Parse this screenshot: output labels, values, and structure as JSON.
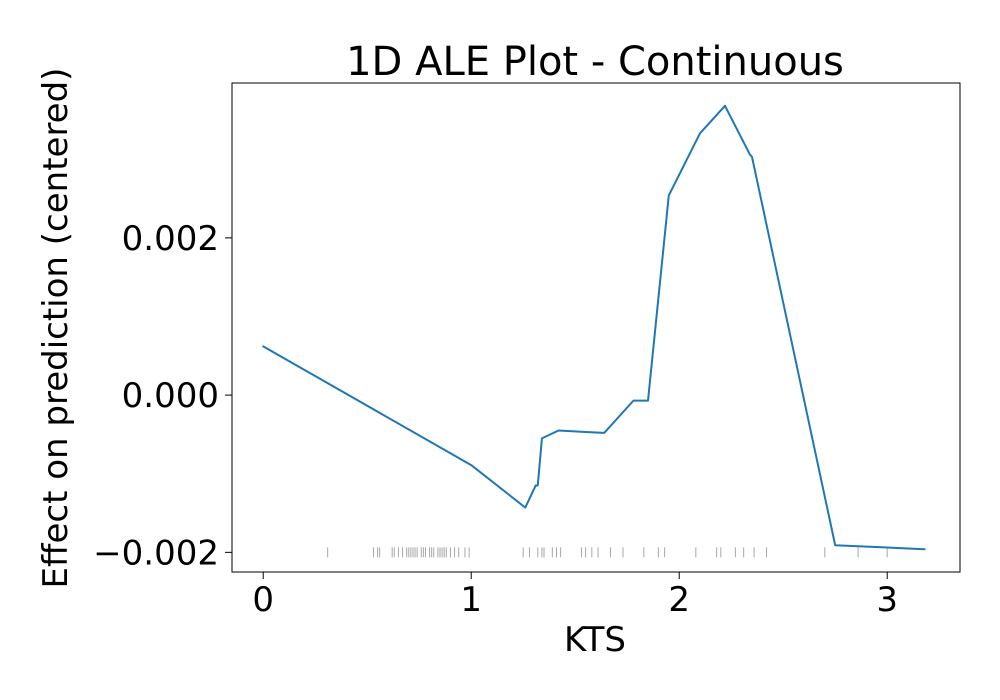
{
  "chart_data": {
    "type": "line",
    "title": "1D ALE Plot - Continuous",
    "xlabel": "KTS",
    "ylabel": "Effect on prediction (centered)",
    "xlim": [
      -0.15,
      3.35
    ],
    "ylim": [
      -0.00225,
      0.00397
    ],
    "x_ticks": [
      0,
      1,
      2,
      3
    ],
    "x_tick_labels": [
      "0",
      "1",
      "2",
      "3"
    ],
    "y_ticks": [
      -0.002,
      0.0,
      0.002
    ],
    "y_tick_labels": [
      "−0.002",
      "0.000",
      "0.002"
    ],
    "grid": false,
    "legend": "none",
    "series": [
      {
        "color": "#1f77b4",
        "x": [
          0.0,
          1.0,
          1.26,
          1.31,
          1.32,
          1.34,
          1.42,
          1.55,
          1.64,
          1.78,
          1.85,
          1.95,
          2.1,
          2.22,
          2.34,
          2.35,
          2.75,
          3.18
        ],
        "y": [
          0.00062,
          -0.00089,
          -0.00143,
          -0.00115,
          -0.00115,
          -0.00055,
          -0.00045,
          -0.00047,
          -0.00048,
          -7e-05,
          -7e-05,
          0.00254,
          0.00333,
          0.00368,
          0.00306,
          0.00303,
          -0.00191,
          -0.00196
        ]
      }
    ],
    "rug": {
      "color": "#000000",
      "y": -0.002,
      "x": [
        0.31,
        0.53,
        0.55,
        0.56,
        0.62,
        0.63,
        0.65,
        0.67,
        0.69,
        0.7,
        0.71,
        0.72,
        0.73,
        0.74,
        0.76,
        0.77,
        0.78,
        0.8,
        0.81,
        0.82,
        0.84,
        0.85,
        0.86,
        0.87,
        0.88,
        0.9,
        0.92,
        0.94,
        0.97,
        0.99,
        1.25,
        1.28,
        1.32,
        1.34,
        1.35,
        1.39,
        1.41,
        1.43,
        1.53,
        1.55,
        1.58,
        1.61,
        1.67,
        1.73,
        1.83,
        1.9,
        1.93,
        2.08,
        2.18,
        2.2,
        2.27,
        2.31,
        2.36,
        2.42,
        2.7,
        2.86,
        3.0
      ]
    }
  }
}
